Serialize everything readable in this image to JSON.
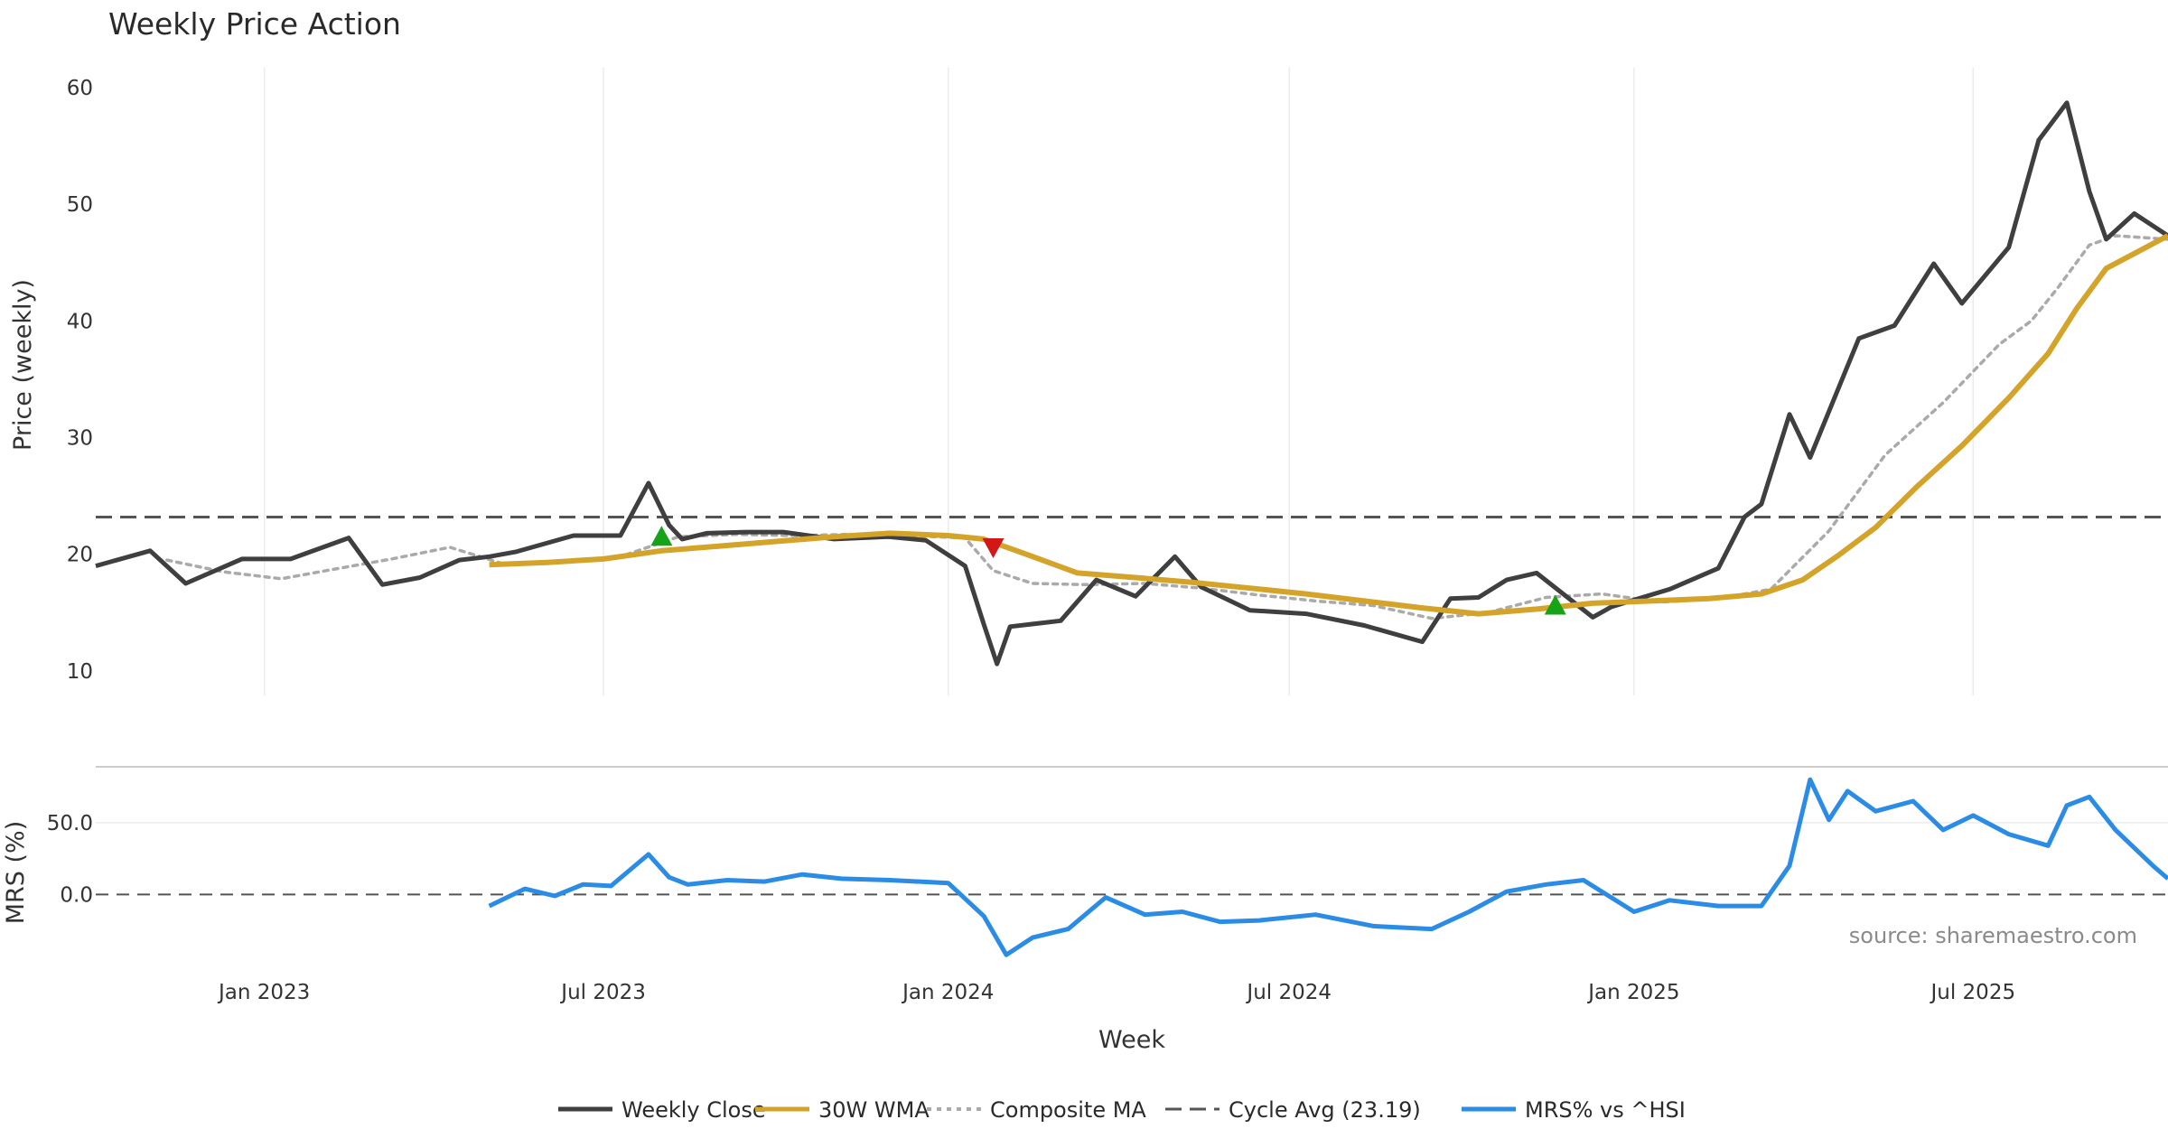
{
  "chart_data": {
    "type": "line",
    "title": "Weekly Price Action",
    "xlabel": "Week",
    "x_range": [
      "2022-10-03",
      "2025-10-13"
    ],
    "x_tick_labels": [
      {
        "date": "2023-01-01",
        "label": "Jan 2023"
      },
      {
        "date": "2023-07-01",
        "label": "Jul 2023"
      },
      {
        "date": "2024-01-01",
        "label": "Jan 2024"
      },
      {
        "date": "2024-07-01",
        "label": "Jul 2024"
      },
      {
        "date": "2025-01-01",
        "label": "Jan 2025"
      },
      {
        "date": "2025-07-01",
        "label": "Jul 2025"
      }
    ],
    "price_panel": {
      "ylabel": "Price (weekly)",
      "ylim": [
        7.9,
        61.7
      ],
      "y_ticks": [
        10,
        20,
        30,
        40,
        50,
        60
      ],
      "cycle_avg": 23.19,
      "weekly_close": {
        "name": "Weekly Close",
        "color": "#3f3f3f",
        "x": [
          "2022-10-03",
          "2022-11-01",
          "2022-11-20",
          "2022-12-20",
          "2023-01-15",
          "2023-02-15",
          "2023-03-05",
          "2023-03-25",
          "2023-04-15",
          "2023-05-01",
          "2023-05-15",
          "2023-06-15",
          "2023-07-10",
          "2023-07-25",
          "2023-08-05",
          "2023-08-12",
          "2023-08-25",
          "2023-09-15",
          "2023-10-05",
          "2023-11-01",
          "2023-11-30",
          "2023-12-20",
          "2024-01-10",
          "2024-01-20",
          "2024-01-27",
          "2024-02-03",
          "2024-03-01",
          "2024-03-20",
          "2024-04-10",
          "2024-05-01",
          "2024-05-15",
          "2024-06-10",
          "2024-07-10",
          "2024-08-10",
          "2024-09-10",
          "2024-09-25",
          "2024-10-10",
          "2024-10-25",
          "2024-11-10",
          "2024-12-10",
          "2024-12-20",
          "2025-01-20",
          "2025-02-15",
          "2025-03-01",
          "2025-03-10",
          "2025-03-25",
          "2025-04-05",
          "2025-04-20",
          "2025-05-01",
          "2025-05-20",
          "2025-06-10",
          "2025-06-25",
          "2025-07-20",
          "2025-08-05",
          "2025-08-20",
          "2025-09-01",
          "2025-09-10",
          "2025-09-25",
          "2025-10-13"
        ],
        "values": [
          19.0,
          20.3,
          17.5,
          19.6,
          19.6,
          21.4,
          17.4,
          18.0,
          19.5,
          19.8,
          20.2,
          21.6,
          21.6,
          26.1,
          22.5,
          21.3,
          21.8,
          21.9,
          21.9,
          21.3,
          21.5,
          21.2,
          19.0,
          14.0,
          10.6,
          13.8,
          14.3,
          17.8,
          16.4,
          19.8,
          17.2,
          15.2,
          14.9,
          13.9,
          12.5,
          16.2,
          16.3,
          17.8,
          18.4,
          14.6,
          15.5,
          17.0,
          18.8,
          23.2,
          24.3,
          32.0,
          28.3,
          34.2,
          38.5,
          39.6,
          44.9,
          41.5,
          46.3,
          55.5,
          58.7,
          51.1,
          47.0,
          49.2,
          47.3
        ]
      },
      "wma_30w": {
        "name": "30W WMA",
        "color": "#d4a32a",
        "x": [
          "2023-05-01",
          "2023-06-01",
          "2023-07-01",
          "2023-08-01",
          "2023-09-01",
          "2023-10-01",
          "2023-11-01",
          "2023-12-01",
          "2024-01-01",
          "2024-01-20",
          "2024-02-10",
          "2024-03-10",
          "2024-04-10",
          "2024-05-10",
          "2024-06-10",
          "2024-07-10",
          "2024-08-10",
          "2024-09-10",
          "2024-10-10",
          "2024-11-10",
          "2024-12-10",
          "2025-01-10",
          "2025-02-10",
          "2025-03-10",
          "2025-04-01",
          "2025-04-20",
          "2025-05-10",
          "2025-06-01",
          "2025-06-25",
          "2025-07-20",
          "2025-08-10",
          "2025-08-25",
          "2025-09-10",
          "2025-10-13"
        ],
        "values": [
          19.1,
          19.3,
          19.6,
          20.3,
          20.7,
          21.1,
          21.5,
          21.8,
          21.6,
          21.3,
          20.1,
          18.4,
          18.0,
          17.6,
          17.1,
          16.6,
          16.0,
          15.4,
          14.9,
          15.3,
          15.8,
          16.0,
          16.2,
          16.6,
          17.8,
          19.9,
          22.3,
          25.8,
          29.3,
          33.4,
          37.2,
          41.0,
          44.5,
          47.3
        ]
      },
      "composite_ma": {
        "name": "Composite MA",
        "color": "#aaaaaa",
        "x": [
          "2022-11-10",
          "2022-12-10",
          "2023-01-10",
          "2023-02-10",
          "2023-03-10",
          "2023-04-10",
          "2023-05-10",
          "2023-06-10",
          "2023-07-10",
          "2023-08-10",
          "2023-09-10",
          "2023-10-10",
          "2023-11-10",
          "2023-12-10",
          "2024-01-10",
          "2024-01-25",
          "2024-02-15",
          "2024-03-15",
          "2024-04-15",
          "2024-05-15",
          "2024-06-15",
          "2024-07-15",
          "2024-08-15",
          "2024-09-15",
          "2024-10-15",
          "2024-11-15",
          "2024-12-15",
          "2025-01-15",
          "2025-02-15",
          "2025-03-15",
          "2025-04-15",
          "2025-05-15",
          "2025-06-15",
          "2025-07-15",
          "2025-08-01",
          "2025-08-15",
          "2025-09-01",
          "2025-09-15",
          "2025-10-13"
        ],
        "values": [
          19.5,
          18.5,
          17.9,
          18.8,
          19.6,
          20.6,
          19.1,
          19.3,
          19.8,
          21.5,
          21.7,
          21.6,
          21.7,
          21.6,
          21.4,
          18.6,
          17.5,
          17.4,
          17.5,
          17.1,
          16.5,
          16.0,
          15.6,
          14.5,
          15.0,
          16.3,
          16.6,
          15.9,
          16.2,
          17.0,
          22.0,
          28.5,
          33.0,
          38.0,
          40.0,
          42.8,
          46.5,
          47.3,
          47.0
        ]
      },
      "signals": [
        {
          "type": "buy",
          "date": "2023-08-01",
          "value": 21.5
        },
        {
          "type": "sell",
          "date": "2024-01-25",
          "value": 20.6
        },
        {
          "type": "buy",
          "date": "2024-11-20",
          "value": 15.6
        }
      ]
    },
    "mrs_panel": {
      "ylabel": "MRS (%)",
      "ylim": [
        -45,
        82
      ],
      "y_ticks": [
        {
          "value": 50.0,
          "label": "50.0"
        },
        {
          "value": 0.0,
          "label": "0.0"
        }
      ],
      "zero_line": 0.0,
      "series": {
        "name": "MRS% vs ^HSI",
        "color": "#2b8ce6",
        "x": [
          "2023-05-01",
          "2023-05-20",
          "2023-06-05",
          "2023-06-20",
          "2023-07-05",
          "2023-07-25",
          "2023-08-05",
          "2023-08-15",
          "2023-09-05",
          "2023-09-25",
          "2023-10-15",
          "2023-11-05",
          "2023-12-01",
          "2024-01-01",
          "2024-01-20",
          "2024-02-01",
          "2024-02-15",
          "2024-03-05",
          "2024-03-25",
          "2024-04-15",
          "2024-05-05",
          "2024-05-25",
          "2024-06-15",
          "2024-07-15",
          "2024-08-15",
          "2024-09-15",
          "2024-10-05",
          "2024-10-25",
          "2024-11-15",
          "2024-12-05",
          "2025-01-01",
          "2025-01-20",
          "2025-02-15",
          "2025-03-10",
          "2025-03-25",
          "2025-04-05",
          "2025-04-15",
          "2025-04-25",
          "2025-05-10",
          "2025-05-30",
          "2025-06-15",
          "2025-07-01",
          "2025-07-20",
          "2025-08-10",
          "2025-08-20",
          "2025-09-01",
          "2025-09-15",
          "2025-10-05",
          "2025-10-13"
        ],
        "values": [
          -8.0,
          4.0,
          -1.0,
          7.0,
          6.0,
          28.0,
          12.0,
          7.0,
          10.0,
          9.0,
          14.0,
          11.0,
          10.0,
          8.0,
          -15.0,
          -42.0,
          -30.0,
          -24.0,
          -2.0,
          -14.0,
          -12.0,
          -19.0,
          -18.0,
          -14.0,
          -22.0,
          -24.0,
          -12.0,
          2.0,
          7.0,
          10.0,
          -12.0,
          -4.0,
          -8.0,
          -8.0,
          20.0,
          80.0,
          52.0,
          72.0,
          58.0,
          65.0,
          45.0,
          55.0,
          42.0,
          34.0,
          62.0,
          68.0,
          45.0,
          20.0,
          11.0
        ]
      }
    },
    "source_note": "source: sharemaestro.com",
    "legend": {
      "position": "bottom-center",
      "items": [
        {
          "label": "Weekly Close",
          "style": "solid",
          "color": "#3f3f3f"
        },
        {
          "label": "30W WMA",
          "style": "solid",
          "color": "#d4a32a"
        },
        {
          "label": "Composite MA",
          "style": "dotted",
          "color": "#aaaaaa"
        },
        {
          "label": "Cycle Avg (23.19)",
          "style": "dashed",
          "color": "#555555"
        },
        {
          "label": "MRS% vs ^HSI",
          "style": "solid",
          "color": "#2b8ce6"
        }
      ]
    }
  }
}
